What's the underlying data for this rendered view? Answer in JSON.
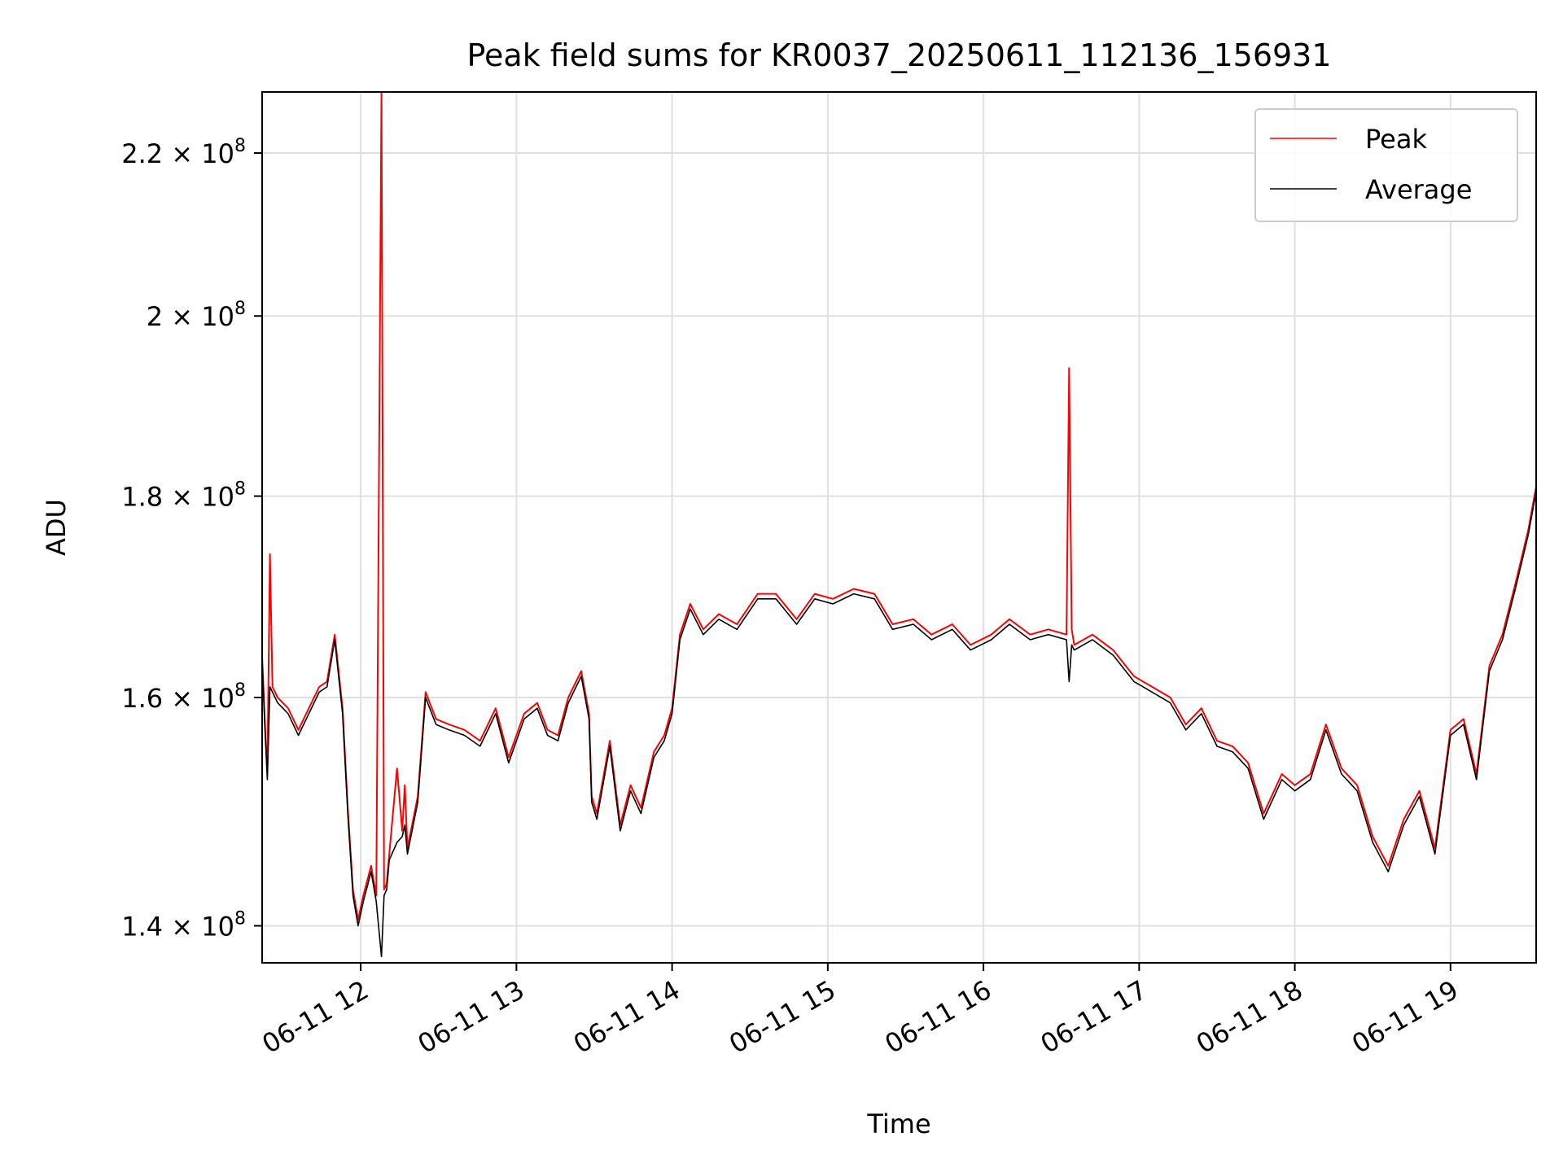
{
  "chart_data": {
    "type": "line",
    "title": "Peak field sums for KR0037_20250611_112136_156931",
    "xlabel": "Time",
    "ylabel": "ADU",
    "yscale": "log",
    "xlim": [
      "2025-06-11 11:22",
      "2025-06-11 19:33"
    ],
    "ylim": [
      137000000,
      228000000
    ],
    "grid": true,
    "legend_position": "top-right",
    "x_ticks": [
      {
        "value": "2025-06-11 12:00",
        "label": "06-11 12"
      },
      {
        "value": "2025-06-11 13:00",
        "label": "06-11 13"
      },
      {
        "value": "2025-06-11 14:00",
        "label": "06-11 14"
      },
      {
        "value": "2025-06-11 15:00",
        "label": "06-11 15"
      },
      {
        "value": "2025-06-11 16:00",
        "label": "06-11 16"
      },
      {
        "value": "2025-06-11 17:00",
        "label": "06-11 17"
      },
      {
        "value": "2025-06-11 18:00",
        "label": "06-11 18"
      },
      {
        "value": "2025-06-11 19:00",
        "label": "06-11 19"
      }
    ],
    "y_ticks": [
      {
        "value": 140000000,
        "mantissa": "1.4",
        "exp": "8"
      },
      {
        "value": 160000000,
        "mantissa": "1.6",
        "exp": "8"
      },
      {
        "value": 180000000,
        "mantissa": "1.8",
        "exp": "8"
      },
      {
        "value": 200000000,
        "mantissa": "2",
        "exp": "8"
      },
      {
        "value": 220000000,
        "mantissa": "2.2",
        "exp": "8"
      }
    ],
    "series": [
      {
        "name": "Peak",
        "color": "#ff0000",
        "x": [
          "2025-06-11 11:22",
          "2025-06-11 11:23",
          "2025-06-11 11:24",
          "2025-06-11 11:25",
          "2025-06-11 11:26",
          "2025-06-11 11:28",
          "2025-06-11 11:32",
          "2025-06-11 11:36",
          "2025-06-11 11:40",
          "2025-06-11 11:44",
          "2025-06-11 11:47",
          "2025-06-11 11:50",
          "2025-06-11 11:53",
          "2025-06-11 11:55",
          "2025-06-11 11:57",
          "2025-06-11 11:59",
          "2025-06-11 12:01",
          "2025-06-11 12:04",
          "2025-06-11 12:06",
          "2025-06-11 12:08",
          "2025-06-11 12:09",
          "2025-06-11 12:10",
          "2025-06-11 12:11",
          "2025-06-11 12:14",
          "2025-06-11 12:16",
          "2025-06-11 12:17",
          "2025-06-11 12:18",
          "2025-06-11 12:22",
          "2025-06-11 12:25",
          "2025-06-11 12:29",
          "2025-06-11 12:34",
          "2025-06-11 12:40",
          "2025-06-11 12:46",
          "2025-06-11 12:52",
          "2025-06-11 12:57",
          "2025-06-11 13:03",
          "2025-06-11 13:08",
          "2025-06-11 13:12",
          "2025-06-11 13:16",
          "2025-06-11 13:20",
          "2025-06-11 13:25",
          "2025-06-11 13:28",
          "2025-06-11 13:29",
          "2025-06-11 13:31",
          "2025-06-11 13:36",
          "2025-06-11 13:40",
          "2025-06-11 13:44",
          "2025-06-11 13:48",
          "2025-06-11 13:53",
          "2025-06-11 13:57",
          "2025-06-11 14:00",
          "2025-06-11 14:03",
          "2025-06-11 14:07",
          "2025-06-11 14:12",
          "2025-06-11 14:18",
          "2025-06-11 14:25",
          "2025-06-11 14:33",
          "2025-06-11 14:40",
          "2025-06-11 14:48",
          "2025-06-11 14:55",
          "2025-06-11 15:02",
          "2025-06-11 15:10",
          "2025-06-11 15:18",
          "2025-06-11 15:25",
          "2025-06-11 15:33",
          "2025-06-11 15:40",
          "2025-06-11 15:48",
          "2025-06-11 15:55",
          "2025-06-11 16:03",
          "2025-06-11 16:10",
          "2025-06-11 16:18",
          "2025-06-11 16:25",
          "2025-06-11 16:32",
          "2025-06-11 16:33",
          "2025-06-11 16:34",
          "2025-06-11 16:35",
          "2025-06-11 16:42",
          "2025-06-11 16:50",
          "2025-06-11 16:58",
          "2025-06-11 17:05",
          "2025-06-11 17:12",
          "2025-06-11 17:18",
          "2025-06-11 17:24",
          "2025-06-11 17:30",
          "2025-06-11 17:36",
          "2025-06-11 17:42",
          "2025-06-11 17:48",
          "2025-06-11 17:55",
          "2025-06-11 18:00",
          "2025-06-11 18:06",
          "2025-06-11 18:12",
          "2025-06-11 18:18",
          "2025-06-11 18:24",
          "2025-06-11 18:30",
          "2025-06-11 18:36",
          "2025-06-11 18:42",
          "2025-06-11 18:48",
          "2025-06-11 18:54",
          "2025-06-11 19:00",
          "2025-06-11 19:05",
          "2025-06-11 19:10",
          "2025-06-11 19:15",
          "2025-06-11 19:20",
          "2025-06-11 19:25",
          "2025-06-11 19:30",
          "2025-06-11 19:33"
        ],
        "values": [
          164000000,
          158000000,
          153000000,
          174000000,
          161000000,
          160000000,
          159000000,
          157000000,
          159000000,
          161000000,
          161500000,
          166000000,
          159000000,
          150000000,
          143000000,
          140500000,
          142500000,
          145000000,
          142500000,
          228000000,
          143000000,
          143500000,
          146000000,
          153500000,
          148000000,
          152000000,
          146500000,
          151000000,
          160500000,
          158000000,
          157500000,
          157000000,
          156000000,
          159000000,
          154500000,
          158500000,
          159500000,
          157000000,
          156500000,
          160000000,
          162500000,
          158500000,
          151000000,
          149500000,
          156000000,
          148500000,
          152000000,
          150000000,
          155000000,
          156500000,
          159000000,
          166000000,
          169000000,
          166500000,
          168000000,
          167000000,
          170000000,
          170000000,
          167500000,
          170000000,
          169500000,
          170500000,
          170000000,
          167000000,
          167500000,
          166000000,
          167000000,
          165000000,
          166000000,
          167500000,
          166000000,
          166500000,
          166000000,
          194000000,
          166500000,
          165000000,
          166000000,
          164500000,
          162000000,
          161000000,
          160000000,
          157500000,
          159000000,
          156000000,
          155500000,
          154000000,
          149500000,
          153000000,
          152000000,
          153000000,
          157500000,
          153500000,
          152000000,
          147500000,
          145000000,
          149000000,
          151500000,
          146500000,
          157000000,
          158000000,
          153000000,
          163000000,
          166000000,
          171000000,
          176500000,
          181000000
        ]
      },
      {
        "name": "Average",
        "color": "#000000",
        "x": [
          "2025-06-11 11:22",
          "2025-06-11 11:23",
          "2025-06-11 11:24",
          "2025-06-11 11:25",
          "2025-06-11 11:26",
          "2025-06-11 11:28",
          "2025-06-11 11:32",
          "2025-06-11 11:36",
          "2025-06-11 11:40",
          "2025-06-11 11:44",
          "2025-06-11 11:47",
          "2025-06-11 11:50",
          "2025-06-11 11:53",
          "2025-06-11 11:55",
          "2025-06-11 11:57",
          "2025-06-11 11:59",
          "2025-06-11 12:01",
          "2025-06-11 12:04",
          "2025-06-11 12:06",
          "2025-06-11 12:08",
          "2025-06-11 12:09",
          "2025-06-11 12:10",
          "2025-06-11 12:11",
          "2025-06-11 12:14",
          "2025-06-11 12:16",
          "2025-06-11 12:17",
          "2025-06-11 12:18",
          "2025-06-11 12:22",
          "2025-06-11 12:25",
          "2025-06-11 12:29",
          "2025-06-11 12:34",
          "2025-06-11 12:40",
          "2025-06-11 12:46",
          "2025-06-11 12:52",
          "2025-06-11 12:57",
          "2025-06-11 13:03",
          "2025-06-11 13:08",
          "2025-06-11 13:12",
          "2025-06-11 13:16",
          "2025-06-11 13:20",
          "2025-06-11 13:25",
          "2025-06-11 13:28",
          "2025-06-11 13:29",
          "2025-06-11 13:31",
          "2025-06-11 13:36",
          "2025-06-11 13:40",
          "2025-06-11 13:44",
          "2025-06-11 13:48",
          "2025-06-11 13:53",
          "2025-06-11 13:57",
          "2025-06-11 14:00",
          "2025-06-11 14:03",
          "2025-06-11 14:07",
          "2025-06-11 14:12",
          "2025-06-11 14:18",
          "2025-06-11 14:25",
          "2025-06-11 14:33",
          "2025-06-11 14:40",
          "2025-06-11 14:48",
          "2025-06-11 14:55",
          "2025-06-11 15:02",
          "2025-06-11 15:10",
          "2025-06-11 15:18",
          "2025-06-11 15:25",
          "2025-06-11 15:33",
          "2025-06-11 15:40",
          "2025-06-11 15:48",
          "2025-06-11 15:55",
          "2025-06-11 16:03",
          "2025-06-11 16:10",
          "2025-06-11 16:18",
          "2025-06-11 16:25",
          "2025-06-11 16:32",
          "2025-06-11 16:33",
          "2025-06-11 16:34",
          "2025-06-11 16:35",
          "2025-06-11 16:42",
          "2025-06-11 16:50",
          "2025-06-11 16:58",
          "2025-06-11 17:05",
          "2025-06-11 17:12",
          "2025-06-11 17:18",
          "2025-06-11 17:24",
          "2025-06-11 17:30",
          "2025-06-11 17:36",
          "2025-06-11 17:42",
          "2025-06-11 17:48",
          "2025-06-11 17:55",
          "2025-06-11 18:00",
          "2025-06-11 18:06",
          "2025-06-11 18:12",
          "2025-06-11 18:18",
          "2025-06-11 18:24",
          "2025-06-11 18:30",
          "2025-06-11 18:36",
          "2025-06-11 18:42",
          "2025-06-11 18:48",
          "2025-06-11 18:54",
          "2025-06-11 19:00",
          "2025-06-11 19:05",
          "2025-06-11 19:10",
          "2025-06-11 19:15",
          "2025-06-11 19:20",
          "2025-06-11 19:25",
          "2025-06-11 19:30",
          "2025-06-11 19:33"
        ],
        "values": [
          163500000,
          157500000,
          152500000,
          161000000,
          160500000,
          159500000,
          158500000,
          156500000,
          158500000,
          160500000,
          161000000,
          165500000,
          158500000,
          149500000,
          142500000,
          140000000,
          142000000,
          144500000,
          142000000,
          137500000,
          142500000,
          143000000,
          145500000,
          147000000,
          147500000,
          148500000,
          146000000,
          150500000,
          160000000,
          157500000,
          157000000,
          156500000,
          155500000,
          158500000,
          154000000,
          158000000,
          159000000,
          156500000,
          156000000,
          159500000,
          162000000,
          158000000,
          150500000,
          149000000,
          155500000,
          148000000,
          151500000,
          149500000,
          154500000,
          156000000,
          158500000,
          165500000,
          168500000,
          166000000,
          167500000,
          166500000,
          169500000,
          169500000,
          167000000,
          169500000,
          169000000,
          170000000,
          169500000,
          166500000,
          167000000,
          165500000,
          166500000,
          164500000,
          165500000,
          167000000,
          165500000,
          166000000,
          165500000,
          161500000,
          165000000,
          164500000,
          165500000,
          164000000,
          161500000,
          160500000,
          159500000,
          157000000,
          158500000,
          155500000,
          155000000,
          153500000,
          149000000,
          152500000,
          151500000,
          152500000,
          157000000,
          153000000,
          151500000,
          147000000,
          144500000,
          148500000,
          151000000,
          146000000,
          156500000,
          157500000,
          152500000,
          162500000,
          165500000,
          170500000,
          176000000,
          180500000
        ]
      }
    ]
  }
}
